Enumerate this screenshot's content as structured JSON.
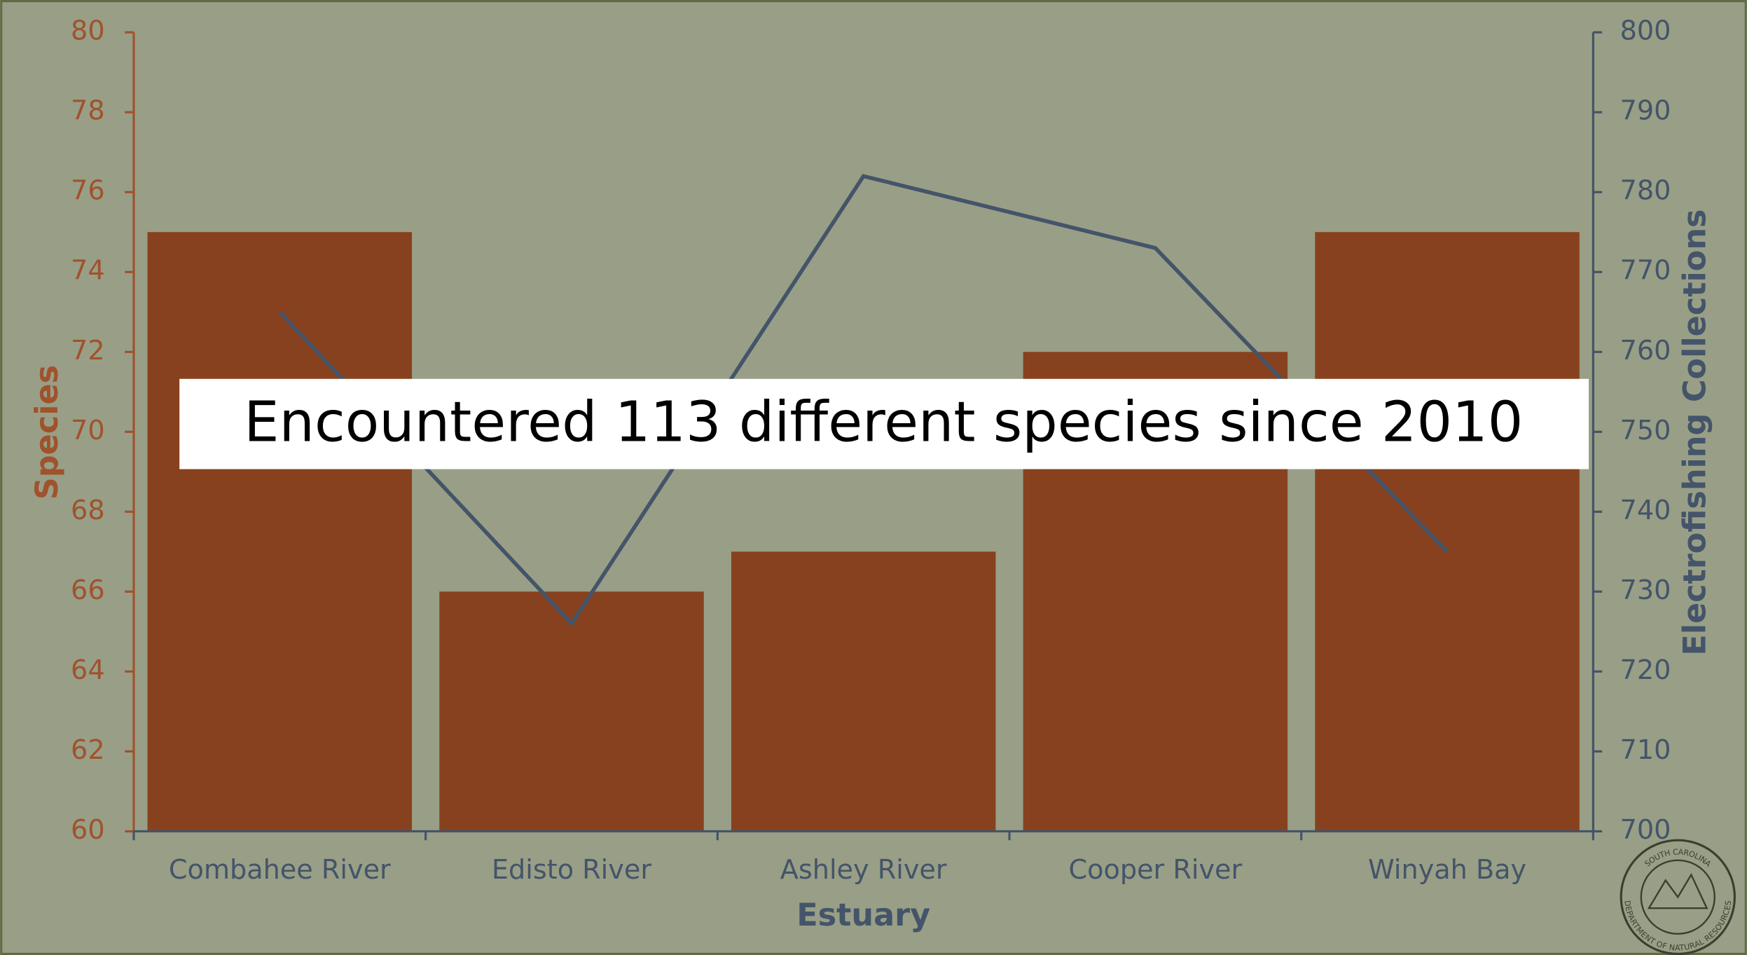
{
  "chart_data": {
    "type": "bar_line",
    "categories": [
      "Combahee River",
      "Edisto River",
      "Ashley River",
      "Cooper River",
      "Winyah Bay"
    ],
    "series": [
      {
        "name": "Species",
        "type": "bar",
        "color": "#88411e",
        "values": [
          75,
          66,
          67,
          72,
          75
        ]
      },
      {
        "name": "Electrofishing Collections",
        "type": "line",
        "axis": "y2",
        "color": "#44546a",
        "values": [
          765,
          726,
          782,
          773,
          735
        ]
      }
    ],
    "xlabel": "Estuary",
    "ylabel": "Species",
    "y2label": "Electrofishing Collections",
    "ylim": [
      60,
      80
    ],
    "yticks": [
      60,
      62,
      64,
      66,
      68,
      70,
      72,
      74,
      76,
      78,
      80
    ],
    "y2lim": [
      700,
      800
    ],
    "y2ticks": [
      700,
      710,
      720,
      730,
      740,
      750,
      760,
      770,
      780,
      790,
      800
    ],
    "annotation": "Encountered 113 different species since 2010"
  },
  "logo": {
    "top": "SOUTH CAROLINA",
    "bottom": "DEPARTMENT OF NATURAL RESOURCES"
  }
}
